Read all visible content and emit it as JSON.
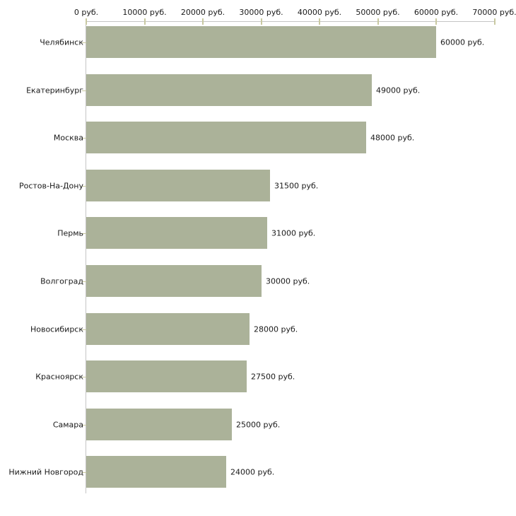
{
  "chart_data": {
    "type": "bar",
    "orientation": "horizontal",
    "title": "",
    "categories": [
      "Челябинск",
      "Екатеринбург",
      "Москва",
      "Ростов-На-Дону",
      "Пермь",
      "Волгоград",
      "Новосибирск",
      "Красноярск",
      "Самара",
      "Нижний Новгород"
    ],
    "values": [
      60000,
      49000,
      48000,
      31500,
      31000,
      30000,
      28000,
      27500,
      25000,
      24000
    ],
    "value_labels": [
      "60000 руб.",
      "49000 руб.",
      "48000 руб.",
      "31500 руб.",
      "31000 руб.",
      "30000 руб.",
      "28000 руб.",
      "27500 руб.",
      "25000 руб.",
      "24000 руб."
    ],
    "x_axis": {
      "position": "top",
      "min": 0,
      "max": 70000,
      "ticks": [
        0,
        10000,
        20000,
        30000,
        40000,
        50000,
        60000,
        70000
      ],
      "tick_labels": [
        "0 руб.",
        "10000 руб.",
        "20000 руб.",
        "30000 руб.",
        "40000 руб.",
        "50000 руб.",
        "60000 руб.",
        "70000 руб."
      ]
    },
    "grid": false,
    "legend": false,
    "unit": "руб.",
    "colors": {
      "bar": "#abb299",
      "axis_line": "#c5c5c5",
      "tick": "#c9c9a1",
      "text": "#1a1a1a",
      "background": "#ffffff"
    }
  }
}
